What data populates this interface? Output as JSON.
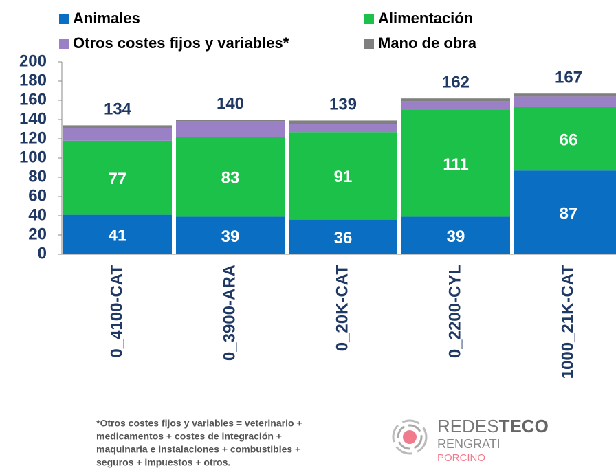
{
  "chart_data": {
    "type": "stacked-bar",
    "categories": [
      "0_4100-CAT",
      "0_3900-ARA",
      "0_20K-CAT",
      "0_2200-CYL",
      "1000_21K-CAT"
    ],
    "series": [
      {
        "name": "Animales",
        "color": "#0a6fc2",
        "values": [
          41,
          39,
          36,
          39,
          87
        ]
      },
      {
        "name": "Alimentación",
        "color": "#1cc14a",
        "values": [
          77,
          83,
          91,
          111,
          66
        ]
      },
      {
        "name": "Otros costes fijos y variables*",
        "color": "#9a80c4",
        "values": [
          13,
          16,
          8,
          9,
          11
        ]
      },
      {
        "name": "Mano de obra",
        "color": "#808080",
        "values": [
          3,
          2,
          4,
          3,
          3
        ]
      }
    ],
    "totals": [
      134,
      140,
      139,
      162,
      167
    ],
    "ylim": [
      0,
      200
    ],
    "yticks": [
      0,
      20,
      40,
      60,
      80,
      100,
      120,
      140,
      160,
      180,
      200
    ],
    "footnote": [
      "*Otros costes fijos y variables = veterinario +",
      "medicamentos + costes de integración +",
      "maquinaria e instalaciones + combustibles +",
      "seguros + impuestos + otros."
    ],
    "logo": {
      "line1a": "REDES",
      "line1b": "TECO",
      "line2": "RENGRATI",
      "line3": "PORCINO"
    }
  }
}
